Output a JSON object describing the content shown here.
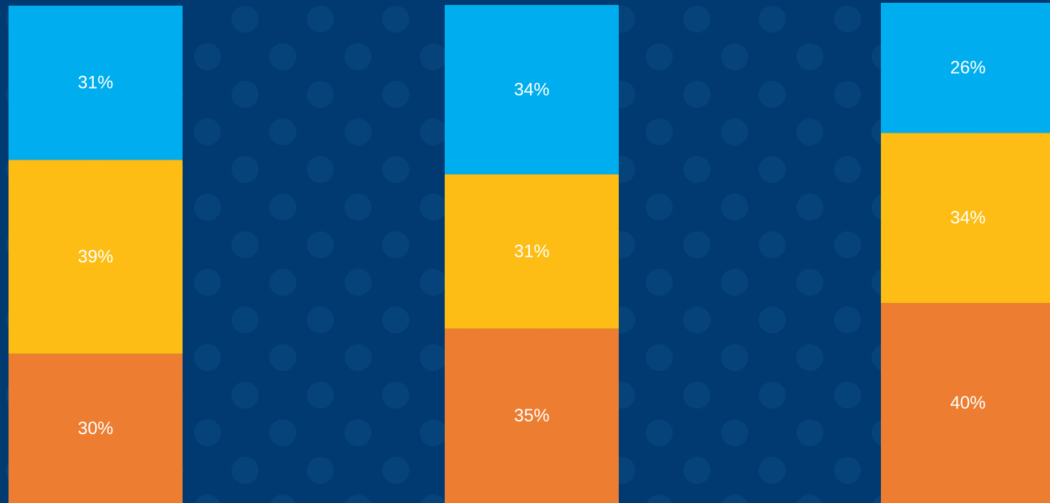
{
  "colors": {
    "background": "#003a70",
    "background_dots": "#0a4a82",
    "top_segment": "#00aeef",
    "middle_segment": "#fdbd14",
    "bottom_segment": "#ed7d31"
  },
  "chart_data": {
    "type": "bar",
    "stacked": true,
    "percent_stacked": true,
    "categories": [
      "",
      "",
      ""
    ],
    "series": [
      {
        "color": "#ed7d31",
        "values": [
          30,
          35,
          40
        ],
        "labels": [
          "30%",
          "35%",
          "40%"
        ]
      },
      {
        "color": "#fdbd14",
        "values": [
          39,
          31,
          34
        ],
        "labels": [
          "39%",
          "31%",
          "34%"
        ]
      },
      {
        "color": "#00aeef",
        "values": [
          31,
          34,
          26
        ],
        "labels": [
          "31%",
          "34%",
          "26%"
        ]
      }
    ],
    "ylim": [
      0,
      100
    ],
    "grid": false,
    "legend": "none",
    "title": "",
    "xlabel": "",
    "ylabel": ""
  }
}
